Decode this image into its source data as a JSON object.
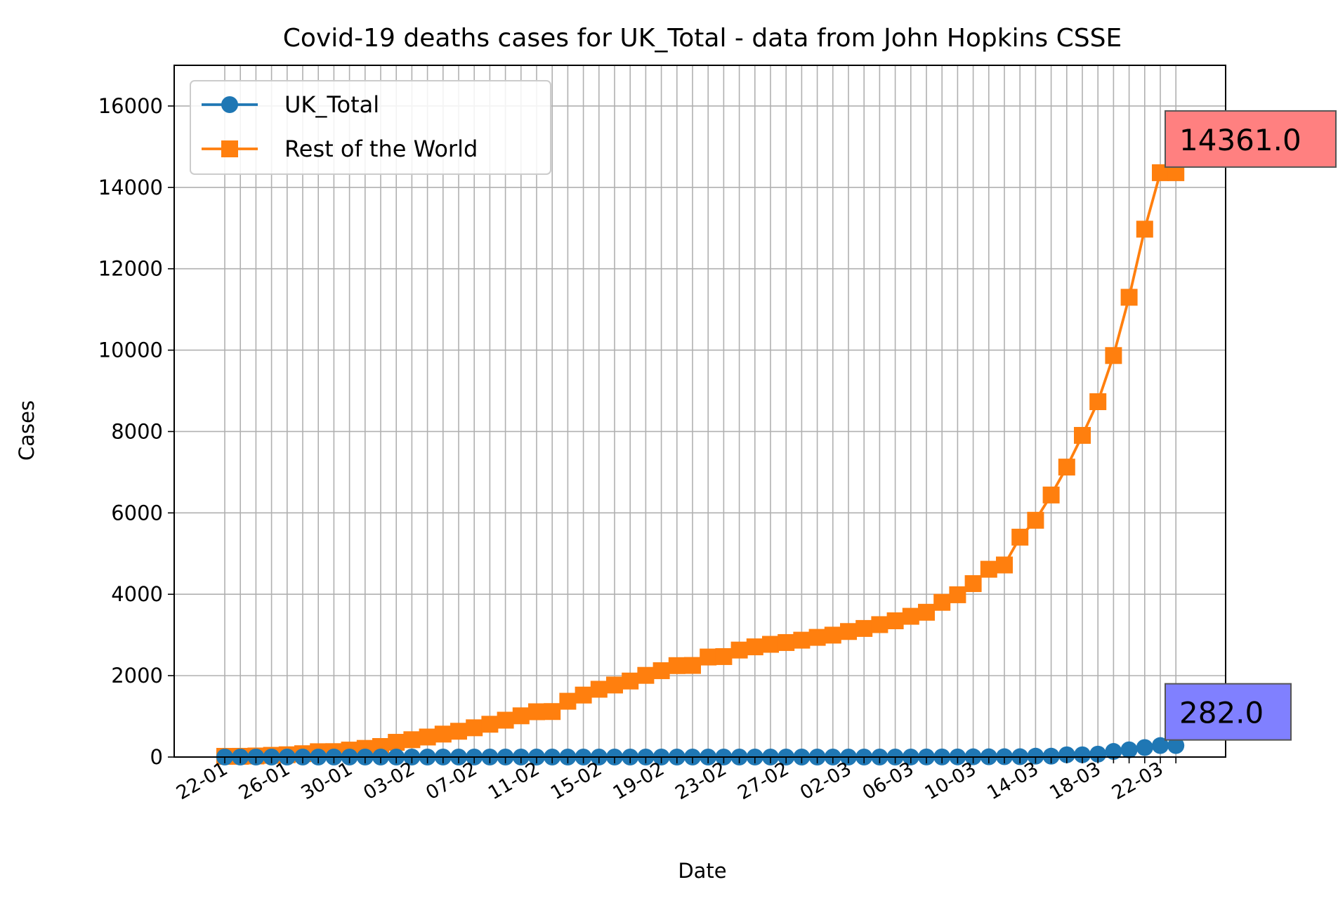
{
  "chart_data": {
    "type": "line",
    "title": "Covid-19 deaths cases for UK_Total - data from John Hopkins CSSE",
    "xlabel": "Date",
    "ylabel": "Cases",
    "x": [
      "22-01",
      "23-01",
      "24-01",
      "25-01",
      "26-01",
      "27-01",
      "28-01",
      "29-01",
      "30-01",
      "31-01",
      "01-02",
      "02-02",
      "03-02",
      "04-02",
      "05-02",
      "06-02",
      "07-02",
      "08-02",
      "09-02",
      "10-02",
      "11-02",
      "12-02",
      "13-02",
      "14-02",
      "15-02",
      "16-02",
      "17-02",
      "18-02",
      "19-02",
      "20-02",
      "21-02",
      "22-02",
      "23-02",
      "24-02",
      "25-02",
      "26-02",
      "27-02",
      "28-02",
      "29-02",
      "01-03",
      "02-03",
      "03-03",
      "04-03",
      "05-03",
      "06-03",
      "07-03",
      "08-03",
      "09-03",
      "10-03",
      "11-03",
      "12-03",
      "13-03",
      "14-03",
      "15-03",
      "16-03",
      "17-03",
      "18-03",
      "19-03",
      "20-03",
      "21-03",
      "22-03",
      "23-03"
    ],
    "x_tick_labels": [
      "22-01",
      "26-01",
      "30-01",
      "03-02",
      "07-02",
      "11-02",
      "15-02",
      "19-02",
      "23-02",
      "27-02",
      "02-03",
      "06-03",
      "10-03",
      "14-03",
      "18-03",
      "22-03"
    ],
    "ylim": [
      0,
      17000
    ],
    "y_ticks": [
      0,
      2000,
      4000,
      6000,
      8000,
      10000,
      12000,
      14000,
      16000
    ],
    "grid": true,
    "legend_position": "top-left",
    "series": [
      {
        "name": "UK_Total",
        "color": "#1f77b4",
        "marker": "circle",
        "values": [
          0,
          0,
          0,
          0,
          0,
          0,
          0,
          0,
          0,
          0,
          0,
          0,
          0,
          0,
          0,
          0,
          0,
          0,
          0,
          0,
          0,
          0,
          0,
          0,
          0,
          0,
          0,
          0,
          0,
          0,
          0,
          0,
          0,
          0,
          0,
          0,
          0,
          0,
          0,
          0,
          0,
          0,
          0,
          0,
          1,
          2,
          2,
          3,
          6,
          6,
          8,
          8,
          21,
          21,
          55,
          55,
          71,
          137,
          177,
          233,
          282,
          282
        ],
        "annotation": {
          "text": "282.0",
          "box_color": "#8080ff"
        }
      },
      {
        "name": "Rest of the World",
        "color": "#ff7f0e",
        "marker": "square",
        "values": [
          17,
          18,
          26,
          42,
          56,
          82,
          131,
          133,
          171,
          213,
          259,
          362,
          426,
          492,
          564,
          634,
          719,
          806,
          906,
          1013,
          1113,
          1118,
          1371,
          1523,
          1666,
          1770,
          1868,
          2007,
          2122,
          2247,
          2251,
          2458,
          2469,
          2629,
          2708,
          2770,
          2814,
          2872,
          2941,
          2996,
          3085,
          3160,
          3254,
          3348,
          3459,
          3558,
          3802,
          3988,
          4262,
          4615,
          4720,
          5404,
          5819,
          6440,
          7126,
          7905,
          8733,
          9867,
          11299,
          12973,
          14361,
          14361
        ],
        "annotation": {
          "text": "14361.0",
          "box_color": "#ff8080"
        }
      }
    ]
  }
}
